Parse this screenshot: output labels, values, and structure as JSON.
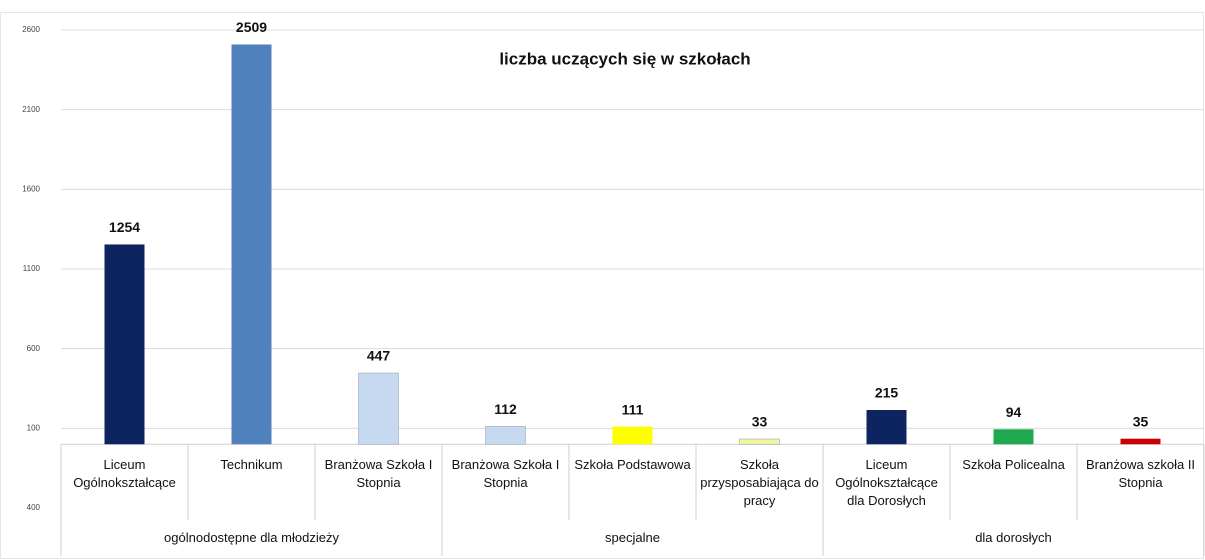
{
  "chart_data": {
    "type": "bar",
    "title": "liczba uczących się w szkołach",
    "groups": [
      {
        "name": "ogólnodostępne dla młodzieży",
        "categories": [
          "Liceum Ogólnokształcące",
          "Technikum",
          "Branżowa Szkoła I Stopnia"
        ]
      },
      {
        "name": "specjalne",
        "categories": [
          "Branżowa Szkoła I Stopnia",
          "Szkoła Podstawowa",
          "Szkoła przysposabiająca do pracy"
        ]
      },
      {
        "name": "dla dorosłych",
        "categories": [
          "Liceum Ogólnokształcące dla Dorosłych",
          "Szkoła Policealna",
          "Branżowa szkoła II Stopnia"
        ]
      }
    ],
    "values": [
      1254,
      2509,
      447,
      112,
      111,
      33,
      215,
      94,
      35
    ],
    "colors": [
      "#0e2461",
      "#4f81bd",
      "#c6d9f1",
      "#c6d9f1",
      "#ffff00",
      "#f4f49a",
      "#0e2461",
      "#1fa84f",
      "#cc0000"
    ],
    "ylim": [
      -400,
      2600
    ],
    "yticks": [
      {
        "value": -400,
        "label": "400"
      },
      100,
      600,
      1100,
      1600,
      2100,
      2600
    ],
    "grid": true
  }
}
